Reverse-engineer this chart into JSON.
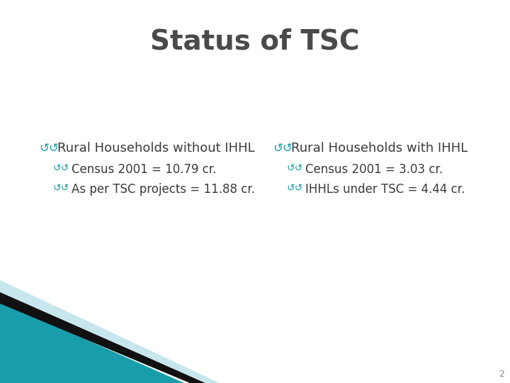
{
  "title": "Status of TSC",
  "title_color": "#4a4a4a",
  "title_fontsize": 28,
  "background_color": "#ffffff",
  "bullet_color": "#1a9daa",
  "text_color": "#3a3a3a",
  "header_fontsize": 13,
  "item_fontsize": 12,
  "left_column": {
    "header": "Rural Households without IHHL",
    "items": [
      "Census 2001 = 10.79 cr.",
      "As per TSC projects = 11.88 cr."
    ]
  },
  "right_column": {
    "header": "Rural Households with IHHL",
    "items": [
      "Census 2001 = 3.03 cr.",
      "IHHLs under TSC = 4.44 cr."
    ]
  },
  "page_number": "2",
  "teal_color": "#1a9daa",
  "black_color": "#111111",
  "lightblue_color": "#c8e6ee"
}
